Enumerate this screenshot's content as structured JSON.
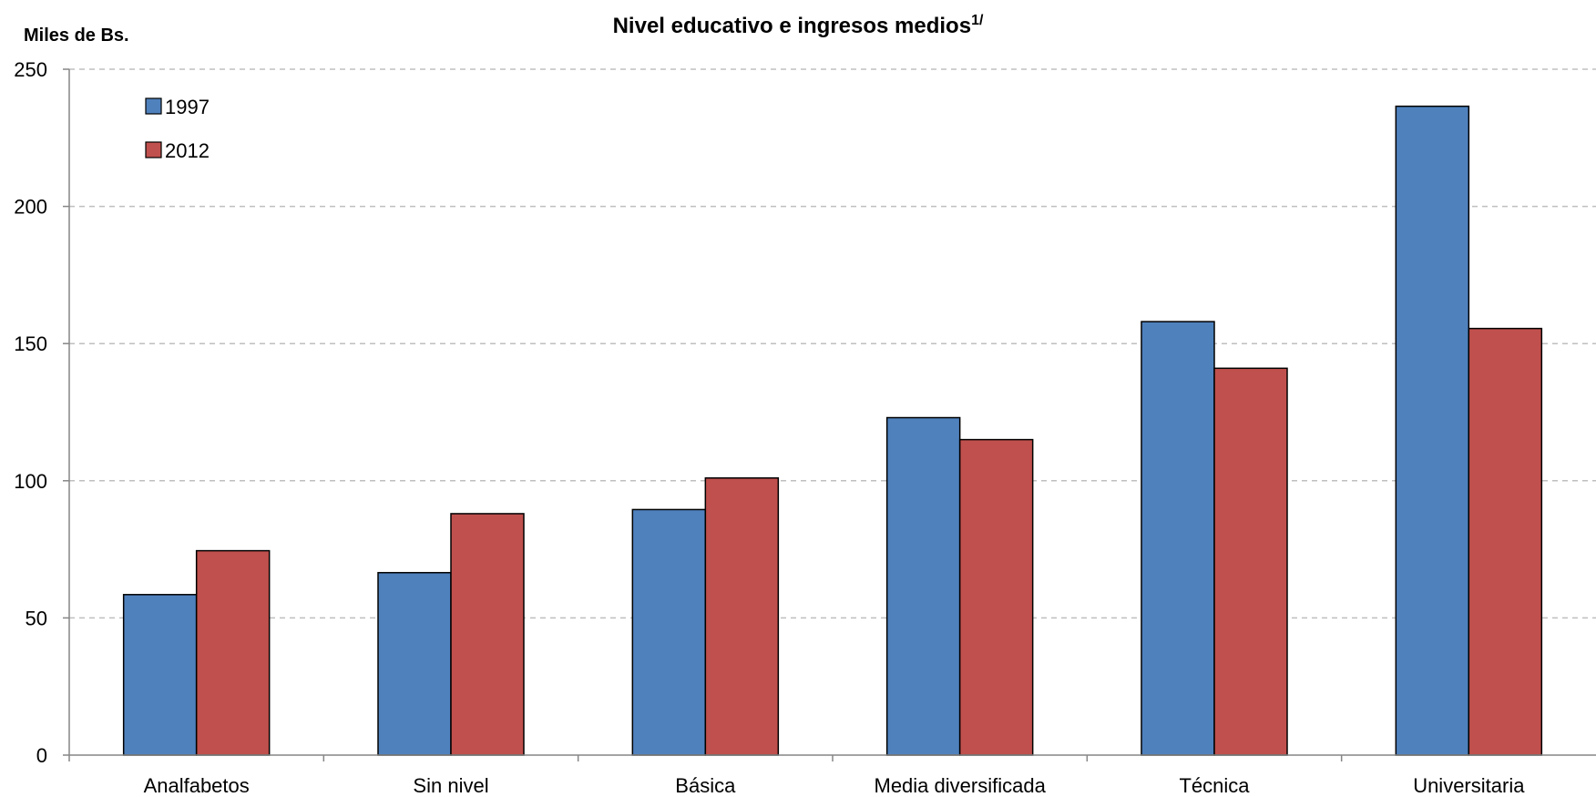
{
  "chart_data": {
    "type": "bar",
    "title": "Nivel educativo e ingresos medios",
    "title_superscript": "1/",
    "xlabel": "",
    "ylabel": "Miles de Bs.",
    "ylim": [
      0,
      250
    ],
    "yticks": [
      0,
      50,
      100,
      150,
      200,
      250
    ],
    "grid": true,
    "legend_position": "top-left",
    "categories": [
      "Analfabetos",
      "Sin nivel",
      "Básica",
      "Media diversificada",
      "Técnica",
      "Universitaria"
    ],
    "series": [
      {
        "name": "1997",
        "color": "#4f81bd",
        "values": [
          58.5,
          66.5,
          89.5,
          123,
          158,
          236.5
        ]
      },
      {
        "name": "2012",
        "color": "#c0504d",
        "values": [
          74.5,
          88,
          101,
          115,
          141,
          155.5
        ]
      }
    ]
  }
}
